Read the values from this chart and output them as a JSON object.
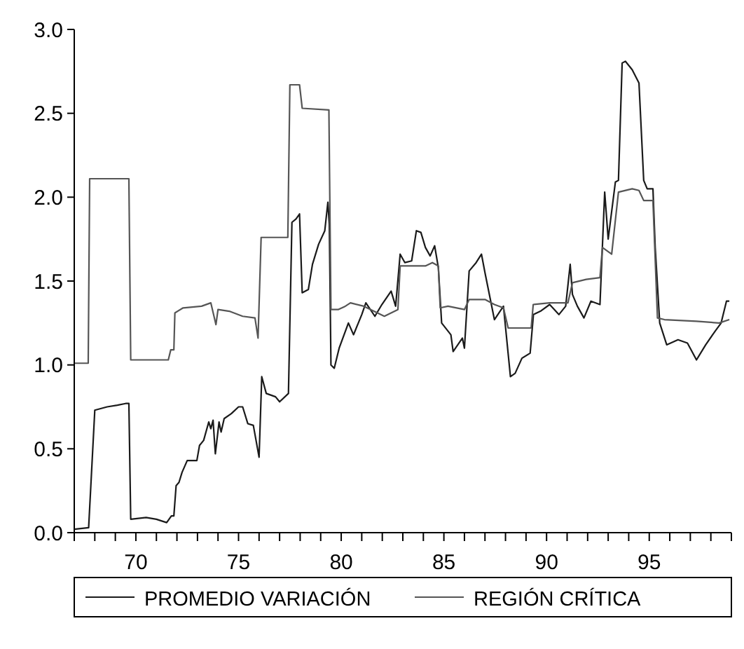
{
  "chart_data": {
    "type": "line",
    "xlim": [
      67,
      99
    ],
    "ylim": [
      0,
      3
    ],
    "xticks": [
      {
        "value": 67,
        "label": null
      },
      {
        "value": 68,
        "label": null
      },
      {
        "value": 69,
        "label": null
      },
      70,
      {
        "value": 71,
        "label": null
      },
      {
        "value": 72,
        "label": null
      },
      {
        "value": 73,
        "label": null
      },
      {
        "value": 74,
        "label": null
      },
      75,
      {
        "value": 76,
        "label": null
      },
      {
        "value": 77,
        "label": null
      },
      {
        "value": 78,
        "label": null
      },
      {
        "value": 79,
        "label": null
      },
      80,
      {
        "value": 81,
        "label": null
      },
      {
        "value": 82,
        "label": null
      },
      {
        "value": 83,
        "label": null
      },
      {
        "value": 84,
        "label": null
      },
      85,
      {
        "value": 86,
        "label": null
      },
      {
        "value": 87,
        "label": null
      },
      {
        "value": 88,
        "label": null
      },
      {
        "value": 89,
        "label": null
      },
      90,
      {
        "value": 91,
        "label": null
      },
      {
        "value": 92,
        "label": null
      },
      {
        "value": 93,
        "label": null
      },
      {
        "value": 94,
        "label": null
      },
      95,
      {
        "value": 96,
        "label": null
      },
      {
        "value": 97,
        "label": null
      },
      {
        "value": 98,
        "label": null
      },
      {
        "value": 99,
        "label": null
      }
    ],
    "yticks": [
      {
        "value": 0,
        "label": "0.0"
      },
      {
        "value": 0.5,
        "label": "0.5"
      },
      {
        "value": 1,
        "label": "1.0"
      },
      {
        "value": 1.5,
        "label": "1.5"
      },
      {
        "value": 2,
        "label": "2.0"
      },
      {
        "value": 2.5,
        "label": "2.5"
      },
      {
        "value": 3,
        "label": "3.0"
      }
    ],
    "grid": false,
    "legend": "bottom",
    "line_style": "solid",
    "marker": "none",
    "series": [
      {
        "name": "PROMEDIO VARIACIÓN",
        "color": "#1a1a1a",
        "x": [
          67,
          67.7,
          68,
          68.6,
          69.1,
          69.5,
          69.66,
          69.75,
          70.5,
          71,
          71.5,
          71.73,
          71.85,
          71.96,
          72.1,
          72.25,
          72.5,
          72.97,
          73.1,
          73.3,
          73.55,
          73.65,
          73.76,
          73.87,
          74.05,
          74.15,
          74.3,
          74.65,
          75,
          75.2,
          75.45,
          75.72,
          76,
          76.13,
          76.35,
          76.8,
          77,
          77.43,
          77.6,
          77.8,
          77.97,
          78.1,
          78.4,
          78.6,
          78.9,
          79.2,
          79.35,
          79.42,
          79.5,
          79.66,
          79.9,
          80.35,
          80.6,
          81,
          81.2,
          81.64,
          81.98,
          82.43,
          82.65,
          82.87,
          83.1,
          83.43,
          83.66,
          83.88,
          84.1,
          84.33,
          84.55,
          84.73,
          84.89,
          85.34,
          85.45,
          85.9,
          86,
          86.23,
          86.57,
          86.83,
          87,
          87.46,
          87.9,
          88.24,
          88.47,
          88.8,
          89.2,
          89.36,
          89.7,
          90.15,
          90.6,
          90.93,
          91.15,
          91.26,
          91.5,
          91.82,
          92.16,
          92.6,
          92.83,
          93,
          93.35,
          93.5,
          93.68,
          93.84,
          94.17,
          94.5,
          94.73,
          94.9,
          95.18,
          95.29,
          95.51,
          95.85,
          96.4,
          96.86,
          97.3,
          97.75,
          98.2,
          98.5,
          98.76,
          98.9
        ],
        "values": [
          0.02,
          0.03,
          0.73,
          0.75,
          0.76,
          0.77,
          0.77,
          0.08,
          0.09,
          0.08,
          0.06,
          0.1,
          0.1,
          0.28,
          0.3,
          0.36,
          0.43,
          0.43,
          0.52,
          0.55,
          0.66,
          0.62,
          0.67,
          0.47,
          0.66,
          0.6,
          0.68,
          0.71,
          0.75,
          0.75,
          0.65,
          0.64,
          0.45,
          0.93,
          0.83,
          0.81,
          0.78,
          0.83,
          1.85,
          1.87,
          1.9,
          1.43,
          1.45,
          1.6,
          1.72,
          1.8,
          1.97,
          1.84,
          1.0,
          0.98,
          1.1,
          1.25,
          1.18,
          1.3,
          1.37,
          1.29,
          1.36,
          1.44,
          1.35,
          1.66,
          1.61,
          1.62,
          1.8,
          1.79,
          1.7,
          1.65,
          1.71,
          1.58,
          1.25,
          1.18,
          1.08,
          1.16,
          1.1,
          1.56,
          1.61,
          1.66,
          1.55,
          1.27,
          1.35,
          0.93,
          0.95,
          1.04,
          1.07,
          1.3,
          1.32,
          1.36,
          1.3,
          1.35,
          1.6,
          1.42,
          1.35,
          1.28,
          1.38,
          1.36,
          2.03,
          1.75,
          2.09,
          2.1,
          2.8,
          2.81,
          2.76,
          2.68,
          2.1,
          2.05,
          2.05,
          1.7,
          1.25,
          1.12,
          1.15,
          1.13,
          1.03,
          1.12,
          1.2,
          1.25,
          1.38,
          1.38
        ]
      },
      {
        "name": "REGIÓN CRÍTICA",
        "color": "#555555",
        "x": [
          67,
          67.68,
          67.75,
          69.66,
          69.75,
          71.58,
          71.7,
          71.85,
          71.9,
          72.3,
          73.2,
          73.65,
          73.9,
          74,
          74.55,
          75.2,
          75.8,
          75.95,
          76.1,
          77.4,
          77.5,
          77.97,
          78.1,
          79.4,
          79.5,
          79.85,
          80.2,
          80.45,
          81.1,
          82.1,
          82.76,
          82.87,
          84.1,
          84.44,
          84.73,
          84.82,
          85.2,
          86,
          86.23,
          87,
          87.46,
          87.9,
          88.13,
          89.25,
          89.35,
          90.15,
          91.04,
          91.26,
          91.93,
          92.6,
          92.72,
          93.17,
          93.5,
          94.17,
          94.5,
          94.73,
          95.18,
          95.4,
          95.74,
          97.3,
          98.4,
          98.9
        ],
        "values": [
          1.01,
          1.01,
          2.11,
          2.11,
          1.03,
          1.03,
          1.09,
          1.09,
          1.31,
          1.34,
          1.35,
          1.37,
          1.24,
          1.33,
          1.32,
          1.29,
          1.28,
          1.16,
          1.76,
          1.76,
          2.67,
          2.67,
          2.53,
          2.52,
          1.33,
          1.33,
          1.35,
          1.37,
          1.35,
          1.29,
          1.33,
          1.59,
          1.59,
          1.61,
          1.59,
          1.34,
          1.35,
          1.33,
          1.39,
          1.39,
          1.36,
          1.34,
          1.22,
          1.22,
          1.36,
          1.37,
          1.37,
          1.49,
          1.51,
          1.52,
          1.7,
          1.66,
          2.03,
          2.05,
          2.04,
          1.98,
          1.98,
          1.28,
          1.27,
          1.26,
          1.25,
          1.27
        ]
      }
    ]
  }
}
